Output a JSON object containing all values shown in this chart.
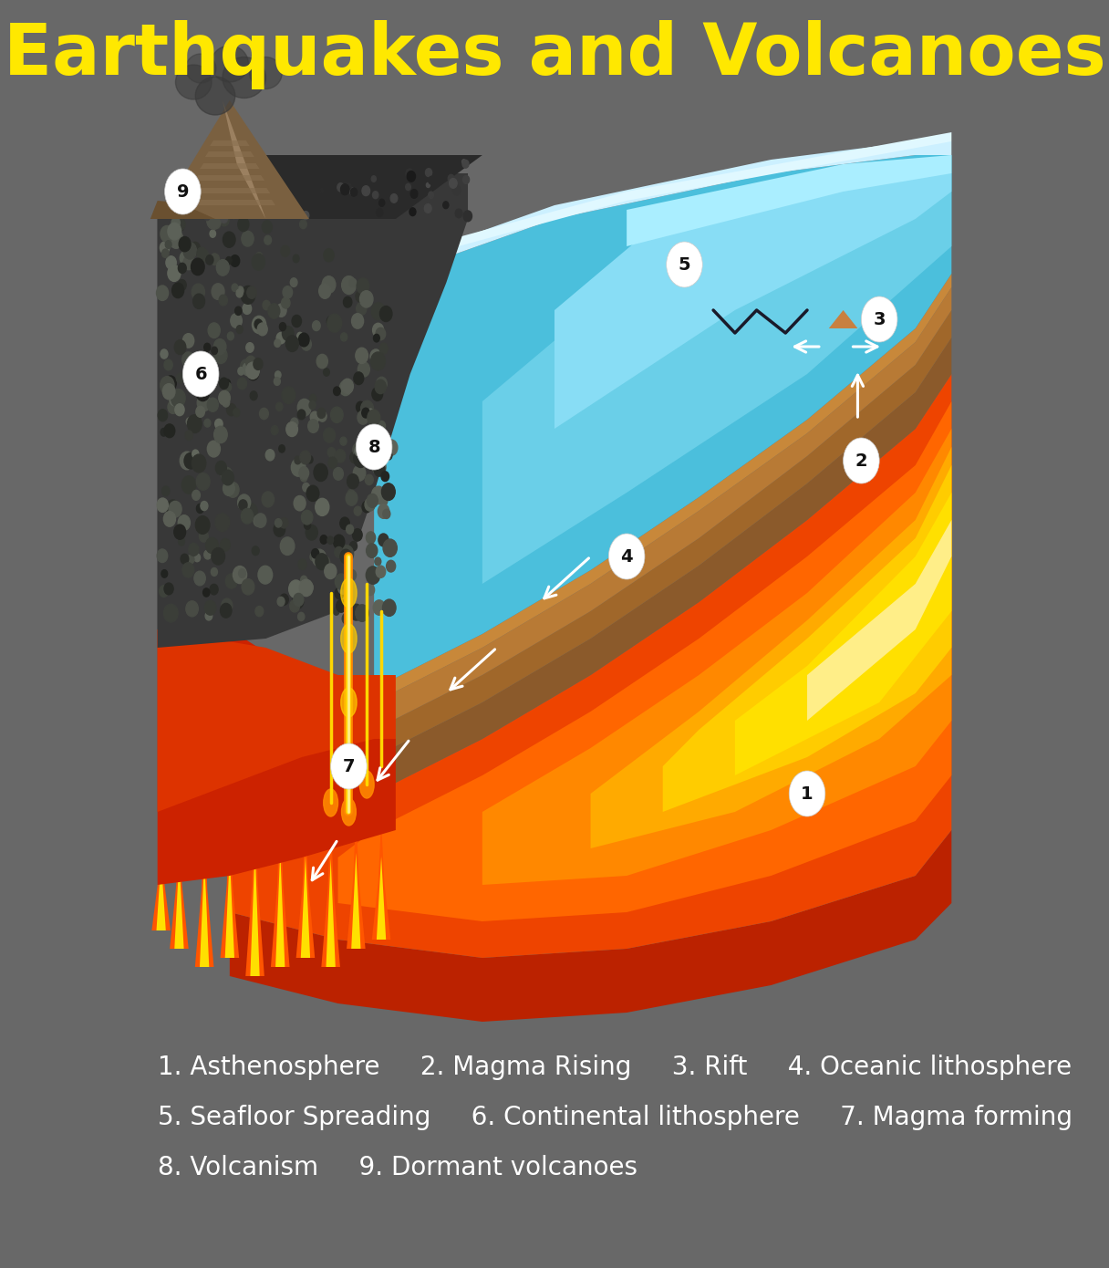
{
  "title": "Earthquakes and Volcanoes",
  "title_color": "#FFE800",
  "title_fontsize": 56,
  "bg_color": "#686868",
  "legend_line1": "1. Asthenosphere     2. Magma Rising     3. Rift     4. Oceanic lithosphere",
  "legend_line2": "5. Seafloor Spreading     6. Continental lithosphere     7. Magma forming",
  "legend_line3": "8. Volcanism     9. Dormant volcanoes",
  "legend_color": "#ffffff",
  "legend_fontsize": 20
}
